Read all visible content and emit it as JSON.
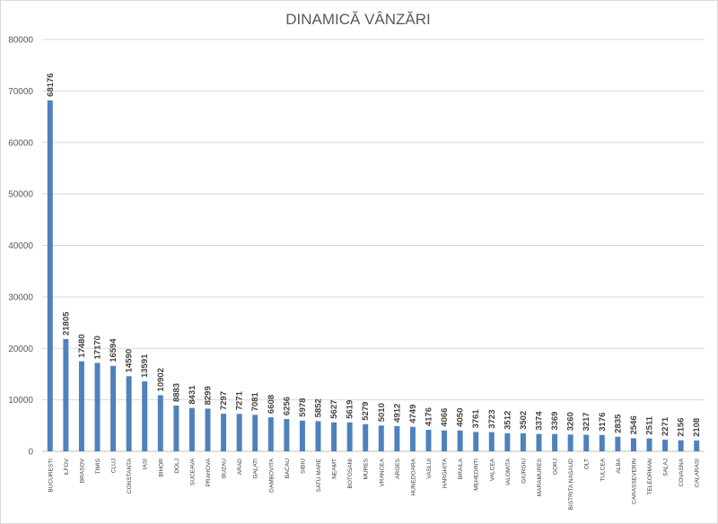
{
  "chart_data": {
    "type": "bar",
    "title": "DINAMICĂ VÂNZĂRI",
    "xlabel": "",
    "ylabel": "",
    "ylim": [
      0,
      80000
    ],
    "yticks": [
      "0",
      "10000",
      "20000",
      "30000",
      "40000",
      "50000",
      "60000",
      "70000",
      "80000"
    ],
    "grid": true,
    "bar_color": "#4f81bd",
    "categories": [
      "BUCURESTI",
      "ILFOV",
      "BRASOV",
      "TIMIS",
      "CLUJ",
      "CONSTANTA",
      "IASI",
      "BIHOR",
      "DOLJ",
      "SUCEAVA",
      "PRAHOVA",
      "BUZAU",
      "ARAD",
      "GALATI",
      "DAMBOVITA",
      "BACAU",
      "SIBIU",
      "SATU MARE",
      "NEAMT",
      "BOTOSANI",
      "MURES",
      "VRANCEA",
      "ARGES",
      "HUNEDOARA",
      "VASLUI",
      "HARGHITA",
      "BRAILA",
      "MEHEDINTI",
      "VALCEA",
      "IALOMITA",
      "GIURGIU",
      "MARAMURES",
      "GORJ",
      "BISTRITA NASAUD",
      "OLT",
      "TULCEA",
      "ALBA",
      "CARASSEVERIN",
      "TELEORMAN",
      "SALAJ",
      "COVASNA",
      "CALARASI"
    ],
    "values": [
      68176,
      21805,
      17480,
      17170,
      16594,
      14590,
      13591,
      10902,
      8883,
      8431,
      8299,
      7297,
      7271,
      7081,
      6608,
      6256,
      5978,
      5852,
      5627,
      5619,
      5279,
      5010,
      4912,
      4749,
      4176,
      4066,
      4050,
      3761,
      3723,
      3512,
      3502,
      3374,
      3369,
      3260,
      3217,
      3176,
      2835,
      2546,
      2511,
      2271,
      2156,
      2108
    ],
    "data_labels": [
      "68176",
      "21805",
      "17480",
      "17170",
      "16594",
      "14590",
      "13591",
      "10902",
      "8883",
      "8431",
      "8299",
      "7297",
      "7271",
      "7081",
      "6608",
      "6256",
      "5978",
      "5852",
      "5627",
      "5619",
      "5279",
      "5010",
      "4912",
      "4749",
      "4176",
      "4066",
      "4050",
      "3761",
      "3723",
      "3512",
      "3502",
      "3374",
      "3369",
      "3260",
      "3217",
      "3176",
      "2835",
      "2546",
      "2511",
      "2271",
      "2156",
      "2108"
    ]
  }
}
